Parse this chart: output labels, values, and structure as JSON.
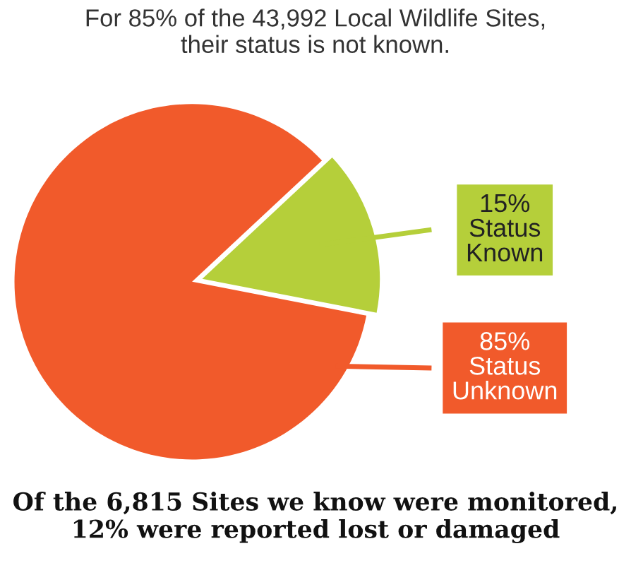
{
  "chart_data": {
    "type": "pie",
    "title": "For 85% of the 43,992 Local Wildlife Sites,\ntheir status is not known.",
    "categories": [
      "Status\nKnown",
      "Status\nUnknown"
    ],
    "values": [
      15,
      85
    ],
    "colors": [
      "#b5cf3a",
      "#f15a2b"
    ],
    "value_labels": [
      "15%",
      "85%"
    ],
    "annotations": [
      "Of the 6,815 Sites we know were monitored,\n12% were reported lost or damaged"
    ]
  }
}
